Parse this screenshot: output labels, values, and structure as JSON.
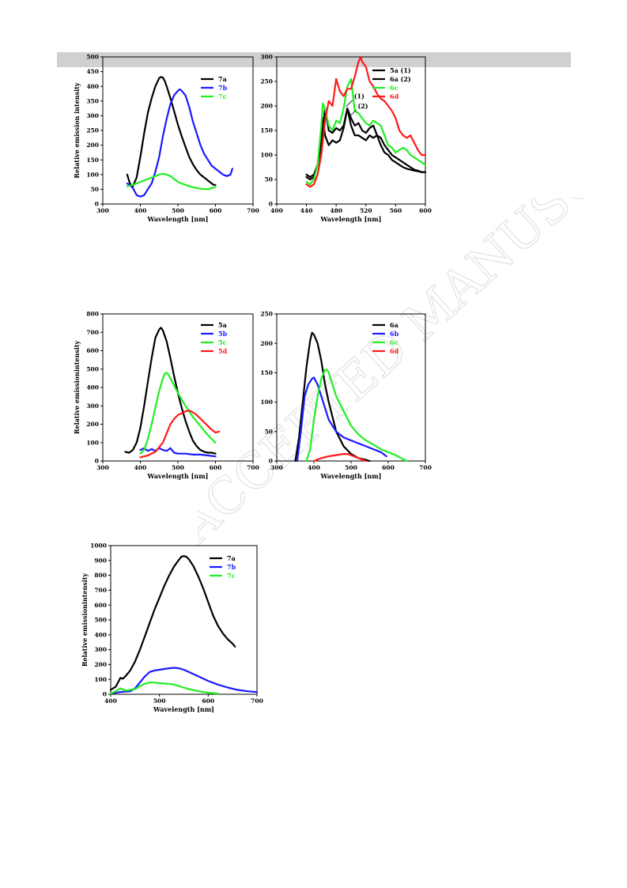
{
  "colors": {
    "black": "#000000",
    "blue": "#1a1aff",
    "green": "#22ee22",
    "red": "#ff1a1a",
    "band": "#d0d0d0",
    "watermark": "#e6e6e6"
  },
  "watermark_text": "ACCEPTED MANUSCRIPT",
  "chart_data": [
    {
      "id": "c1",
      "type": "line",
      "xlabel": "Wavelength [nm]",
      "ylabel": "Relative emission intensity",
      "xlim": [
        300,
        700
      ],
      "ylim": [
        0,
        500
      ],
      "xticks": [
        300,
        400,
        500,
        600,
        700
      ],
      "yticks": [
        0,
        50,
        100,
        150,
        200,
        250,
        300,
        350,
        400,
        450,
        500
      ],
      "legend": "top-right",
      "annotations": [],
      "series": [
        {
          "name": "7a",
          "color": "#000000",
          "x": [
            365,
            372,
            380,
            390,
            400,
            410,
            420,
            430,
            440,
            450,
            455,
            460,
            465,
            470,
            480,
            490,
            500,
            510,
            520,
            530,
            540,
            550,
            560,
            570,
            580,
            590,
            595,
            600
          ],
          "y": [
            100,
            70,
            60,
            90,
            160,
            240,
            310,
            360,
            400,
            428,
            432,
            430,
            418,
            400,
            360,
            315,
            270,
            230,
            195,
            160,
            135,
            115,
            100,
            90,
            80,
            70,
            65,
            65
          ]
        },
        {
          "name": "7b",
          "color": "#1a1aff",
          "x": [
            365,
            380,
            390,
            400,
            410,
            420,
            430,
            440,
            450,
            460,
            470,
            480,
            490,
            500,
            505,
            510,
            520,
            530,
            540,
            550,
            560,
            570,
            580,
            590,
            600,
            610,
            620,
            630,
            640,
            645
          ],
          "y": [
            70,
            55,
            30,
            25,
            30,
            50,
            70,
            110,
            160,
            230,
            290,
            340,
            370,
            385,
            390,
            385,
            370,
            330,
            280,
            240,
            200,
            170,
            150,
            130,
            120,
            110,
            100,
            95,
            100,
            120
          ]
        },
        {
          "name": "7c",
          "color": "#22ee22",
          "x": [
            365,
            380,
            400,
            420,
            440,
            450,
            460,
            470,
            480,
            490,
            500,
            520,
            540,
            560,
            580,
            600
          ],
          "y": [
            60,
            65,
            75,
            85,
            95,
            100,
            103,
            100,
            95,
            85,
            75,
            65,
            57,
            52,
            50,
            58
          ]
        }
      ]
    },
    {
      "id": "c2",
      "type": "line",
      "xlabel": "Wavelength [nm]",
      "ylabel": "",
      "xlim": [
        400,
        600
      ],
      "ylim": [
        0,
        300
      ],
      "xticks": [
        400,
        440,
        480,
        520,
        560,
        600
      ],
      "yticks": [
        0,
        50,
        100,
        150,
        200,
        250,
        300
      ],
      "legend": "top-right",
      "annotations": [
        {
          "text": "(1)",
          "x": 504,
          "y": 215
        },
        {
          "text": "(2)",
          "x": 509,
          "y": 195
        }
      ],
      "series": [
        {
          "name": "5a (1)",
          "color": "#000000",
          "x": [
            440,
            445,
            450,
            455,
            460,
            462,
            465,
            470,
            475,
            480,
            485,
            490,
            495,
            500,
            505,
            510,
            515,
            520,
            525,
            530,
            535,
            540,
            545,
            550,
            555,
            560,
            565,
            570,
            575,
            580,
            585,
            590,
            595,
            600
          ],
          "y": [
            60,
            55,
            60,
            80,
            130,
            175,
            140,
            120,
            130,
            125,
            130,
            155,
            195,
            160,
            140,
            140,
            135,
            130,
            140,
            135,
            140,
            135,
            120,
            110,
            100,
            95,
            90,
            85,
            80,
            75,
            70,
            68,
            65,
            65
          ]
        },
        {
          "name": "6a (2)",
          "color": "#000000",
          "x": [
            440,
            445,
            450,
            455,
            460,
            465,
            470,
            475,
            480,
            485,
            490,
            495,
            500,
            505,
            510,
            515,
            520,
            525,
            530,
            535,
            540,
            545,
            550,
            555,
            560,
            565,
            570,
            575,
            580,
            585,
            590,
            595,
            600
          ],
          "y": [
            55,
            50,
            55,
            80,
            120,
            195,
            150,
            145,
            155,
            150,
            160,
            195,
            175,
            160,
            165,
            150,
            145,
            155,
            160,
            140,
            120,
            105,
            100,
            90,
            85,
            80,
            75,
            72,
            70,
            68,
            67,
            65,
            65
          ]
        },
        {
          "name": "6c",
          "color": "#22ee22",
          "x": [
            440,
            445,
            450,
            455,
            460,
            462,
            465,
            470,
            475,
            480,
            485,
            490,
            495,
            500,
            505,
            510,
            515,
            520,
            525,
            530,
            535,
            540,
            545,
            550,
            555,
            560,
            565,
            570,
            575,
            580,
            585,
            590,
            595,
            600
          ],
          "y": [
            45,
            40,
            50,
            80,
            160,
            205,
            195,
            160,
            150,
            170,
            165,
            195,
            240,
            255,
            190,
            185,
            175,
            165,
            160,
            170,
            165,
            160,
            140,
            120,
            115,
            105,
            110,
            115,
            110,
            100,
            95,
            90,
            85,
            80
          ]
        },
        {
          "name": "6d",
          "color": "#ff1a1a",
          "x": [
            440,
            445,
            450,
            455,
            460,
            465,
            470,
            475,
            480,
            485,
            490,
            495,
            500,
            505,
            510,
            513,
            515,
            520,
            525,
            530,
            535,
            540,
            545,
            550,
            555,
            560,
            565,
            570,
            575,
            580,
            585,
            590,
            595,
            600
          ],
          "y": [
            40,
            35,
            40,
            60,
            100,
            170,
            210,
            200,
            255,
            230,
            220,
            235,
            235,
            260,
            290,
            300,
            290,
            280,
            250,
            240,
            225,
            215,
            210,
            200,
            190,
            175,
            150,
            140,
            135,
            140,
            125,
            110,
            100,
            100
          ]
        }
      ]
    },
    {
      "id": "c3",
      "type": "line",
      "xlabel": "Wavelength [nm]",
      "ylabel": "Relative emissionintensity",
      "xlim": [
        300,
        700
      ],
      "ylim": [
        0,
        800
      ],
      "xticks": [
        300,
        400,
        500,
        600,
        700
      ],
      "yticks": [
        0,
        100,
        200,
        300,
        400,
        500,
        600,
        700,
        800
      ],
      "legend": "top-right",
      "annotations": [],
      "series": [
        {
          "name": "5a",
          "color": "#000000",
          "x": [
            360,
            370,
            380,
            390,
            400,
            410,
            420,
            430,
            440,
            450,
            455,
            460,
            470,
            480,
            490,
            500,
            510,
            520,
            530,
            540,
            550,
            560,
            570,
            580,
            590,
            600
          ],
          "y": [
            50,
            45,
            60,
            100,
            180,
            300,
            430,
            560,
            670,
            715,
            725,
            710,
            650,
            560,
            460,
            370,
            290,
            220,
            160,
            110,
            80,
            60,
            50,
            45,
            45,
            40
          ]
        },
        {
          "name": "5b",
          "color": "#1a1aff",
          "x": [
            400,
            410,
            420,
            430,
            440,
            450,
            460,
            470,
            480,
            490,
            500,
            520,
            540,
            560,
            580,
            600
          ],
          "y": [
            60,
            70,
            55,
            65,
            55,
            70,
            60,
            55,
            70,
            45,
            40,
            40,
            35,
            35,
            30,
            25
          ]
        },
        {
          "name": "5c",
          "color": "#22ee22",
          "x": [
            400,
            410,
            420,
            430,
            440,
            450,
            460,
            465,
            470,
            475,
            480,
            490,
            500,
            520,
            540,
            560,
            580,
            600
          ],
          "y": [
            40,
            60,
            120,
            200,
            290,
            380,
            450,
            475,
            480,
            470,
            450,
            410,
            370,
            300,
            240,
            190,
            140,
            100
          ]
        },
        {
          "name": "5d",
          "color": "#ff1a1a",
          "x": [
            400,
            420,
            440,
            460,
            470,
            480,
            490,
            500,
            510,
            520,
            530,
            540,
            550,
            560,
            570,
            580,
            590,
            600,
            610
          ],
          "y": [
            20,
            30,
            50,
            100,
            150,
            200,
            230,
            250,
            260,
            270,
            275,
            265,
            250,
            230,
            210,
            190,
            170,
            155,
            160
          ]
        }
      ]
    },
    {
      "id": "c4",
      "type": "line",
      "xlabel": "Wavelength [nm]",
      "ylabel": "",
      "xlim": [
        300,
        700
      ],
      "ylim": [
        0,
        250
      ],
      "xticks": [
        300,
        400,
        500,
        600,
        700
      ],
      "yticks": [
        0,
        50,
        100,
        150,
        200,
        250
      ],
      "legend": "top-right",
      "annotations": [],
      "series": [
        {
          "name": "6a",
          "color": "#000000",
          "x": [
            350,
            360,
            370,
            380,
            390,
            395,
            400,
            410,
            420,
            430,
            440,
            450,
            460,
            480,
            500,
            520,
            540,
            550
          ],
          "y": [
            0,
            40,
            100,
            160,
            205,
            218,
            215,
            200,
            170,
            130,
            100,
            75,
            50,
            25,
            12,
            5,
            2,
            0
          ]
        },
        {
          "name": "6b",
          "color": "#1a1aff",
          "x": [
            355,
            365,
            375,
            385,
            395,
            400,
            410,
            420,
            430,
            440,
            450,
            460,
            470,
            480,
            500,
            520,
            540,
            560,
            580,
            595
          ],
          "y": [
            0,
            50,
            110,
            130,
            140,
            142,
            130,
            110,
            90,
            70,
            60,
            50,
            45,
            40,
            35,
            30,
            25,
            20,
            15,
            8
          ]
        },
        {
          "name": "6c",
          "color": "#22ee22",
          "x": [
            380,
            390,
            400,
            410,
            420,
            430,
            435,
            440,
            450,
            460,
            480,
            500,
            520,
            540,
            560,
            580,
            600,
            620,
            640,
            650
          ],
          "y": [
            0,
            20,
            70,
            110,
            140,
            155,
            155,
            150,
            130,
            110,
            85,
            60,
            45,
            35,
            28,
            20,
            15,
            10,
            3,
            0
          ]
        },
        {
          "name": "6d",
          "color": "#ff1a1a",
          "x": [
            400,
            420,
            440,
            460,
            480,
            490,
            500,
            520,
            540
          ],
          "y": [
            0,
            5,
            8,
            10,
            12,
            12,
            10,
            5,
            0
          ]
        }
      ]
    },
    {
      "id": "c5",
      "type": "line",
      "xlabel": "Wavelength [nm]",
      "ylabel": "Relative emissionintensity",
      "xlim": [
        400,
        700
      ],
      "ylim": [
        0,
        1000
      ],
      "xticks": [
        400,
        500,
        600,
        700
      ],
      "yticks": [
        0,
        100,
        200,
        300,
        400,
        500,
        600,
        700,
        800,
        900,
        1000
      ],
      "legend": "top-right",
      "annotations": [],
      "series": [
        {
          "name": "7a",
          "color": "#000000",
          "x": [
            400,
            410,
            415,
            420,
            425,
            430,
            440,
            450,
            460,
            470,
            480,
            490,
            500,
            510,
            520,
            530,
            540,
            545,
            550,
            555,
            560,
            570,
            580,
            590,
            600,
            610,
            620,
            630,
            640,
            650,
            655
          ],
          "y": [
            30,
            50,
            80,
            110,
            105,
            120,
            160,
            220,
            300,
            390,
            480,
            570,
            650,
            730,
            800,
            860,
            905,
            925,
            930,
            925,
            910,
            860,
            790,
            710,
            620,
            530,
            460,
            410,
            370,
            340,
            320
          ]
        },
        {
          "name": "7b",
          "color": "#1a1aff",
          "x": [
            400,
            420,
            440,
            450,
            460,
            470,
            480,
            490,
            500,
            510,
            520,
            530,
            540,
            550,
            560,
            580,
            600,
            620,
            640,
            660,
            680,
            700
          ],
          "y": [
            5,
            15,
            20,
            40,
            80,
            120,
            150,
            160,
            165,
            170,
            175,
            178,
            175,
            165,
            150,
            120,
            90,
            65,
            45,
            30,
            20,
            15
          ]
        },
        {
          "name": "7c",
          "color": "#22ee22",
          "x": [
            400,
            410,
            420,
            430,
            440,
            450,
            460,
            470,
            480,
            490,
            500,
            510,
            520,
            530,
            540,
            550,
            560,
            580,
            600,
            620
          ],
          "y": [
            5,
            20,
            40,
            25,
            30,
            35,
            55,
            70,
            80,
            78,
            75,
            72,
            70,
            65,
            55,
            45,
            35,
            20,
            10,
            5
          ]
        }
      ]
    }
  ]
}
